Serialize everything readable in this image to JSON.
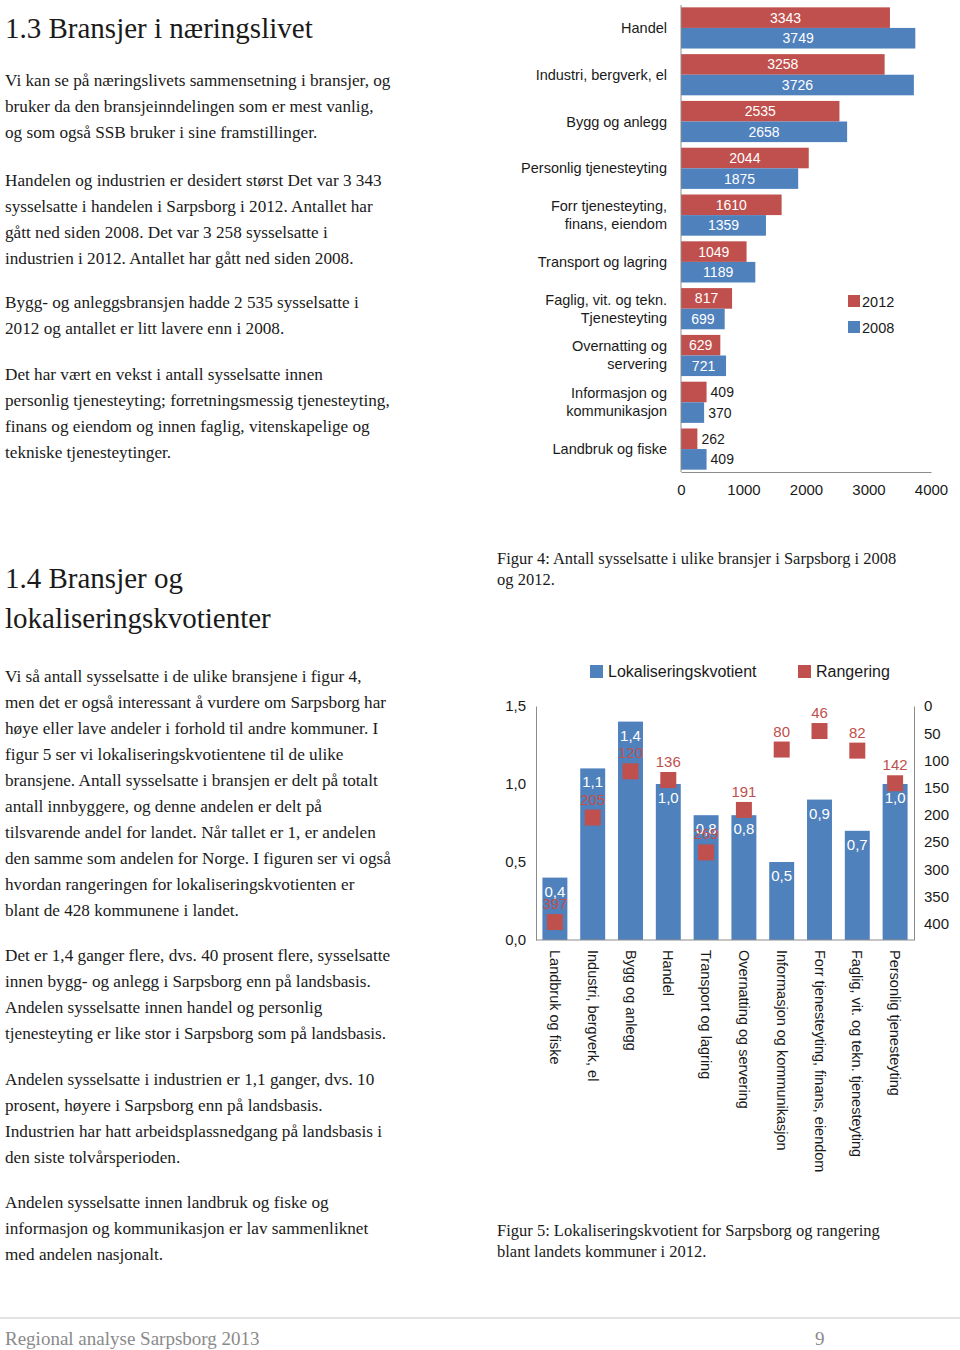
{
  "document": {
    "sections": [
      {
        "heading": [
          "1.3 Bransjer i næringslivet"
        ],
        "paragraphs": [
          [
            "Vi kan se på næringslivets sammensetning i bransjer, og",
            "bruker da den bransjeinndelingen som er mest vanlig,",
            "og som også SSB bruker i sine framstillinger."
          ],
          [
            "Handelen og industrien er desidert størst Det var 3 343",
            "sysselsatte i handelen i Sarpsborg i 2012. Antallet har",
            "gått ned siden 2008. Det var 3 258 sysselsatte i",
            "industrien i 2012. Antallet har gått ned siden 2008."
          ],
          [
            "Bygg- og anleggsbransjen hadde 2 535 sysselsatte i",
            "2012 og antallet er litt lavere enn i 2008."
          ],
          [
            "Det har vært en vekst i antall sysselsatte innen",
            "personlig tjenesteyting; forretningsmessig tjenesteyting,",
            "finans og eiendom og innen faglig, vitenskapelige og",
            "tekniske tjenesteytinger."
          ]
        ]
      },
      {
        "heading": [
          "1.4 Bransjer og",
          "lokaliseringskvotienter"
        ],
        "paragraphs": [
          [
            "Vi så antall sysselsatte i de ulike bransjene i figur 4,",
            "men det er også interessant å vurdere om Sarpsborg har",
            "høye eller lave andeler i forhold til andre kommuner. I",
            "figur 5 ser vi lokaliseringskvotientene til de ulike",
            "bransjene. Antall sysselsatte i bransjen er delt på totalt",
            "antall innbyggere, og denne andelen er delt på",
            "tilsvarende andel for landet. Når tallet er 1, er andelen",
            "den samme som andelen for Norge. I figuren ser vi også",
            "hvordan rangeringen for lokaliseringskvotienten er",
            "blant de 428 kommunene i landet."
          ],
          [
            "Det er 1,4 ganger flere, dvs. 40 prosent flere, sysselsatte",
            "innen bygg- og anlegg i Sarpsborg enn på landsbasis.",
            "Andelen sysselsatte innen handel og personlig",
            "tjenesteyting er like stor i Sarpsborg som på landsbasis."
          ],
          [
            "Andelen sysselsatte i industrien er 1,1 ganger, dvs. 10",
            "prosent, høyere i Sarpsborg enn på landsbasis.",
            "Industrien har hatt arbeidsplassnedgang på landsbasis i",
            "den siste tolvårsperioden."
          ],
          [
            "Andelen sysselsatte innen landbruk og fiske og",
            "informasjon og kommunikasjon er lav sammenliknet",
            "med andelen nasjonalt."
          ]
        ]
      }
    ],
    "captions": [
      [
        "Figur 4: Antall sysselsatte i ulike bransjer i Sarpsborg i 2008",
        "og 2012."
      ],
      [
        "Figur 5: Lokaliseringskvotient for Sarpsborg og rangering",
        "blant landets kommuner i 2012."
      ]
    ],
    "footer": {
      "title": "Regional analyse Sarpsborg 2013",
      "page": "9"
    }
  },
  "chart_data": [
    {
      "type": "bar",
      "orientation": "horizontal",
      "categories": [
        "Handel",
        "Industri, bergverk, el",
        "Bygg og anlegg",
        "Personlig tjenesteyting",
        "Forr tjenesteyting,\nfinans, eiendom",
        "Transport og lagring",
        "Faglig, vit. og tekn.\nTjenesteyting",
        "Overnatting og\nservering",
        "Informasjon og\nkommunikasjon",
        "Landbruk og fiske"
      ],
      "series": [
        {
          "name": "2012",
          "color": "#c0504d",
          "values": [
            3343,
            3258,
            2535,
            2044,
            1610,
            1049,
            817,
            629,
            409,
            262
          ]
        },
        {
          "name": "2008",
          "color": "#4f81bd",
          "values": [
            3749,
            3726,
            2658,
            1875,
            1359,
            1189,
            699,
            721,
            370,
            409
          ]
        }
      ],
      "xlim": [
        0,
        4000
      ],
      "xticks": [
        0,
        1000,
        2000,
        3000,
        4000
      ],
      "data_labels": true,
      "legend": "right"
    },
    {
      "type": "bar",
      "categories": [
        "Landbruk og fiske",
        "Industri, bergverk, el",
        "Bygg og anlegg",
        "Handel",
        "Transport og lagring",
        "Overnatting og servering",
        "Informasjon og kommunikasjon",
        "Forr tjenesteyting, finans, eiendom",
        "Faglig, vit. og tekn. tjenesteyting",
        "Personlig tjenesteyting"
      ],
      "series": [
        {
          "name": "Lokaliseringskvotient",
          "type": "bar",
          "color": "#4f81bd",
          "values": [
            0.4,
            1.1,
            1.4,
            1.0,
            0.8,
            0.8,
            0.5,
            0.9,
            0.7,
            1.0
          ],
          "value_labels": [
            "0,4",
            "1,1",
            "1,4",
            "1,0",
            "0,8",
            "0,8",
            "0,5",
            "0,9",
            "0,7",
            "1,0"
          ]
        },
        {
          "name": "Rangering",
          "type": "scatter",
          "marker": "square",
          "color": "#c0504d",
          "axis": "y2",
          "values": [
            397,
            205,
            120,
            136,
            269,
            191,
            80,
            46,
            82,
            142
          ]
        }
      ],
      "ylim": [
        0,
        1.5
      ],
      "yticks": [
        {
          "value": 0,
          "label": "0,0"
        },
        {
          "value": 0.5,
          "label": "0,5"
        },
        {
          "value": 1.0,
          "label": "1,0"
        },
        {
          "value": 1.5,
          "label": "1,5"
        }
      ],
      "y2lim": [
        430,
        0
      ],
      "y2ticks": [
        0,
        50,
        100,
        150,
        200,
        250,
        300,
        350,
        400
      ],
      "data_labels": true,
      "legend": "top"
    }
  ]
}
